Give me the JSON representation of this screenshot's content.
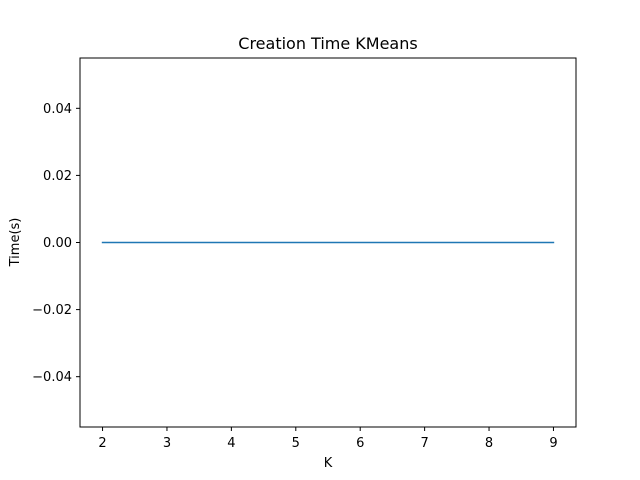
{
  "chart_data": {
    "type": "line",
    "title": "Creation Time KMeans",
    "xlabel": "K",
    "ylabel": "Time(s)",
    "x": [
      2,
      3,
      4,
      5,
      6,
      7,
      8,
      9
    ],
    "series": [
      {
        "values": [
          0,
          0,
          0,
          0,
          0,
          0,
          0,
          0
        ],
        "color": "#1f77b4"
      }
    ],
    "xlim": [
      1.65,
      9.35
    ],
    "ylim": [
      -0.055,
      0.055
    ],
    "xticks": [
      2,
      3,
      4,
      5,
      6,
      7,
      8,
      9
    ],
    "yticks": [
      0.04,
      0.02,
      0.0,
      -0.02,
      -0.04
    ],
    "ytick_labels": [
      "0.04",
      "0.02",
      "0.00",
      "−0.02",
      "−0.04"
    ],
    "grid": false
  }
}
